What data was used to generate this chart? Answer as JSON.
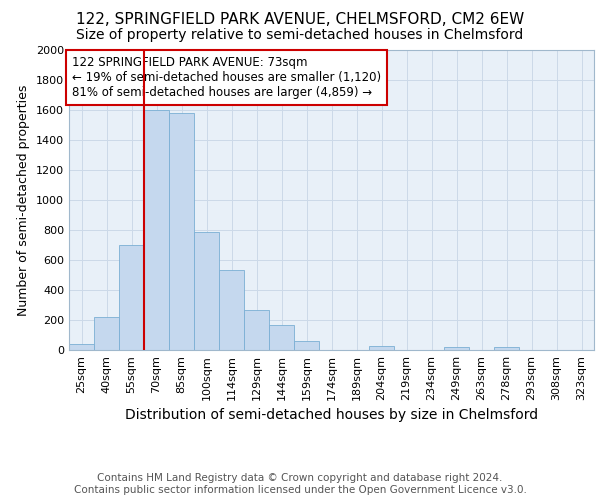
{
  "title1": "122, SPRINGFIELD PARK AVENUE, CHELMSFORD, CM2 6EW",
  "title2": "Size of property relative to semi-detached houses in Chelmsford",
  "xlabel": "Distribution of semi-detached houses by size in Chelmsford",
  "ylabel": "Number of semi-detached properties",
  "categories": [
    "25sqm",
    "40sqm",
    "55sqm",
    "70sqm",
    "85sqm",
    "100sqm",
    "114sqm",
    "129sqm",
    "144sqm",
    "159sqm",
    "174sqm",
    "189sqm",
    "204sqm",
    "219sqm",
    "234sqm",
    "249sqm",
    "263sqm",
    "278sqm",
    "293sqm",
    "308sqm",
    "323sqm"
  ],
  "values": [
    40,
    220,
    700,
    1600,
    1580,
    790,
    535,
    270,
    165,
    60,
    0,
    0,
    30,
    0,
    0,
    20,
    0,
    20,
    0,
    0,
    0
  ],
  "bar_color": "#c5d8ee",
  "bar_edge_color": "#7aafd4",
  "vline_x_index": 3,
  "vline_color": "#cc0000",
  "annotation_text": "122 SPRINGFIELD PARK AVENUE: 73sqm\n← 19% of semi-detached houses are smaller (1,120)\n81% of semi-detached houses are larger (4,859) →",
  "annotation_box_color": "#ffffff",
  "annotation_box_edge_color": "#cc0000",
  "ylim": [
    0,
    2000
  ],
  "yticks": [
    0,
    200,
    400,
    600,
    800,
    1000,
    1200,
    1400,
    1600,
    1800,
    2000
  ],
  "grid_color": "#ccd9e8",
  "background_color": "#e8f0f8",
  "footer_text": "Contains HM Land Registry data © Crown copyright and database right 2024.\nContains public sector information licensed under the Open Government Licence v3.0.",
  "title1_fontsize": 11,
  "title2_fontsize": 10,
  "xlabel_fontsize": 10,
  "ylabel_fontsize": 9,
  "tick_fontsize": 8,
  "annotation_fontsize": 8.5,
  "footer_fontsize": 7.5
}
